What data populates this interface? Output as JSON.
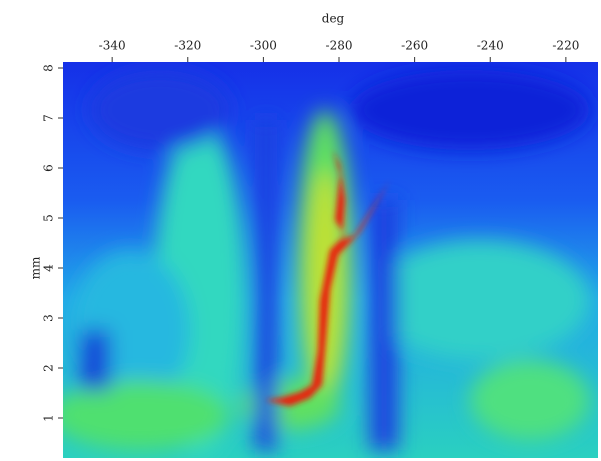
{
  "chart_data": {
    "type": "heatmap",
    "xlabel": "deg",
    "ylabel": "mm",
    "xlim": [
      -353,
      -211.5
    ],
    "xticks": [
      -340,
      -320,
      -300,
      -280,
      -260,
      -240,
      -220
    ],
    "ylim": [
      0.2,
      8.12
    ],
    "yticks": [
      1,
      2,
      3,
      4,
      5,
      6,
      7,
      8
    ]
  }
}
